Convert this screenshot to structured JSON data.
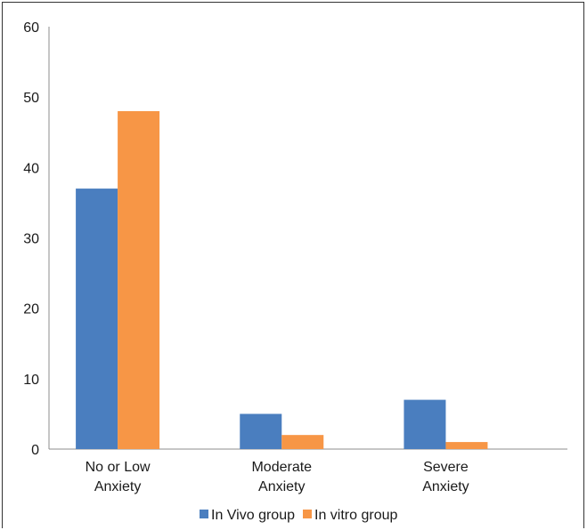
{
  "chart_data": {
    "type": "bar",
    "categories": [
      [
        "No or Low",
        "Anxiety"
      ],
      [
        "Moderate",
        "Anxiety"
      ],
      [
        "Severe",
        "Anxiety"
      ]
    ],
    "series": [
      {
        "name": "In Vivo group",
        "color": "#4a7ebf",
        "values": [
          37,
          5,
          7
        ]
      },
      {
        "name": "In vitro group",
        "color": "#f79646",
        "values": [
          48,
          2,
          1
        ]
      }
    ],
    "yticks": [
      "0",
      "10",
      "20",
      "30",
      "40",
      "50",
      "60"
    ],
    "ylim": [
      0,
      60
    ],
    "grid": false,
    "legend_position": "bottom",
    "title": "",
    "xlabel": "",
    "ylabel": ""
  }
}
